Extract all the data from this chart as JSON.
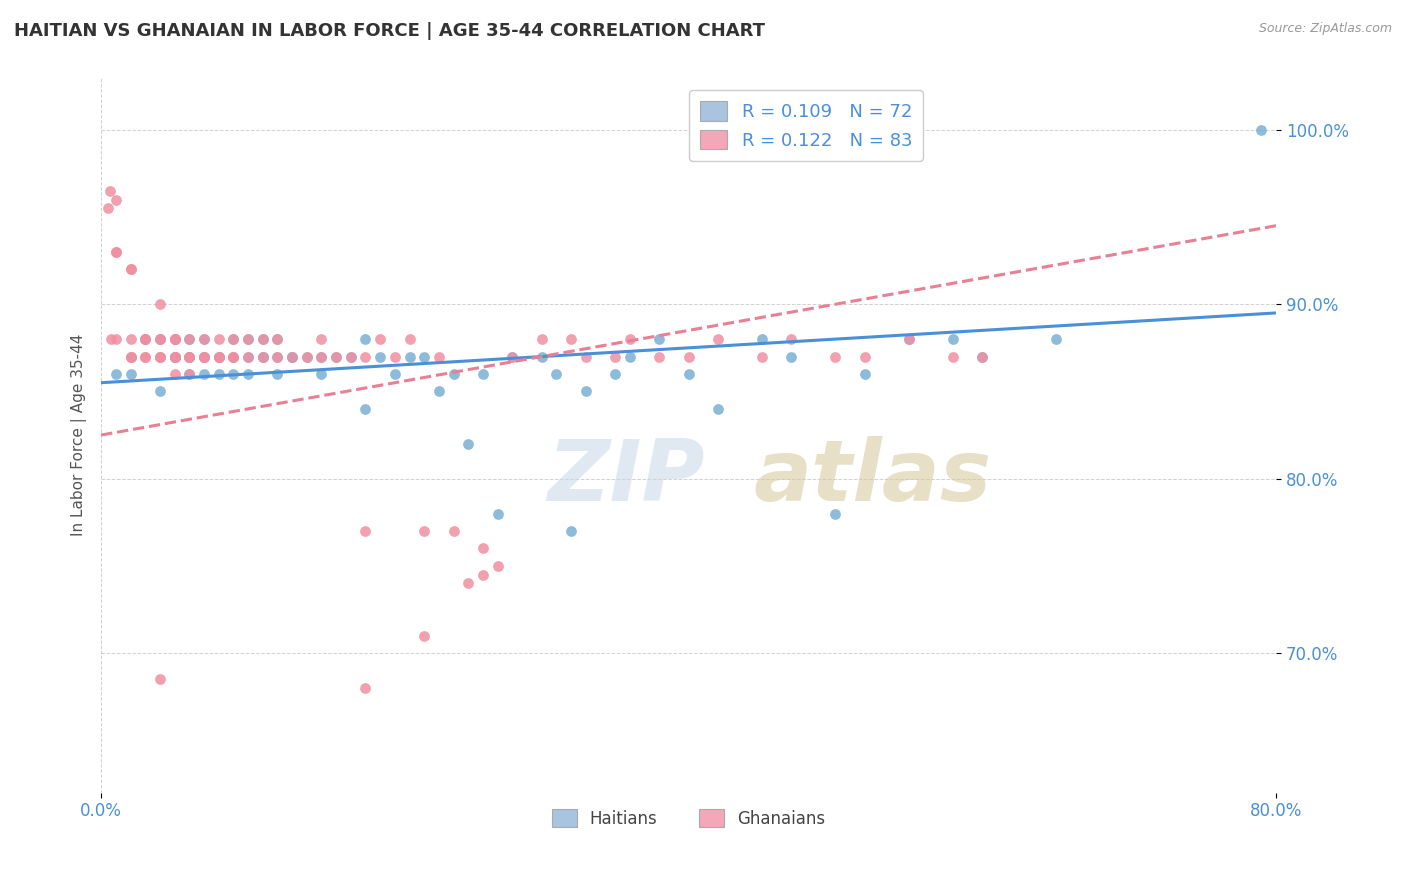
{
  "title": "HAITIAN VS GHANAIAN IN LABOR FORCE | AGE 35-44 CORRELATION CHART",
  "source": "Source: ZipAtlas.com",
  "ylabel": "In Labor Force | Age 35-44",
  "xlim": [
    0.0,
    0.8
  ],
  "ylim": [
    0.62,
    1.03
  ],
  "blue_color": "#7bafd4",
  "pink_color": "#f08fa0",
  "blue_line_color": "#4a90d9",
  "pink_line_color": "#e87f95",
  "blue_legend_color": "#a8c4e0",
  "pink_legend_color": "#f4a7b9",
  "legend_labels_top": [
    "R = 0.109   N = 72",
    "R = 0.122   N = 83"
  ],
  "legend_labels_bottom": [
    "Haitians",
    "Ghanaians"
  ],
  "blue_trend": [
    0.855,
    0.895
  ],
  "pink_trend": [
    0.825,
    0.945
  ],
  "xtick_labels": [
    "0.0%",
    "80.0%"
  ],
  "xtick_vals": [
    0.0,
    0.8
  ],
  "ytick_vals": [
    0.7,
    0.8,
    0.9,
    1.0
  ],
  "ytick_labels": [
    "70.0%",
    "80.0%",
    "90.0%",
    "100.0%"
  ],
  "blue_scatter_x": [
    0.01,
    0.02,
    0.02,
    0.03,
    0.04,
    0.04,
    0.05,
    0.05,
    0.05,
    0.05,
    0.05,
    0.05,
    0.06,
    0.06,
    0.06,
    0.06,
    0.07,
    0.07,
    0.07,
    0.07,
    0.08,
    0.08,
    0.08,
    0.09,
    0.09,
    0.09,
    0.1,
    0.1,
    0.1,
    0.11,
    0.11,
    0.11,
    0.12,
    0.12,
    0.12,
    0.13,
    0.13,
    0.14,
    0.15,
    0.15,
    0.16,
    0.17,
    0.18,
    0.18,
    0.19,
    0.2,
    0.21,
    0.22,
    0.23,
    0.24,
    0.25,
    0.26,
    0.27,
    0.28,
    0.3,
    0.31,
    0.32,
    0.33,
    0.35,
    0.36,
    0.38,
    0.4,
    0.42,
    0.45,
    0.47,
    0.5,
    0.52,
    0.55,
    0.58,
    0.6,
    0.65,
    0.79
  ],
  "blue_scatter_y": [
    0.86,
    0.86,
    0.87,
    0.88,
    0.85,
    0.88,
    0.87,
    0.87,
    0.87,
    0.88,
    0.88,
    0.87,
    0.87,
    0.87,
    0.88,
    0.86,
    0.86,
    0.87,
    0.88,
    0.87,
    0.87,
    0.86,
    0.87,
    0.87,
    0.88,
    0.86,
    0.86,
    0.87,
    0.88,
    0.87,
    0.87,
    0.88,
    0.86,
    0.87,
    0.88,
    0.87,
    0.87,
    0.87,
    0.86,
    0.87,
    0.87,
    0.87,
    0.84,
    0.88,
    0.87,
    0.86,
    0.87,
    0.87,
    0.85,
    0.86,
    0.82,
    0.86,
    0.78,
    0.87,
    0.87,
    0.86,
    0.77,
    0.85,
    0.86,
    0.87,
    0.88,
    0.86,
    0.84,
    0.88,
    0.87,
    0.78,
    0.86,
    0.88,
    0.88,
    0.87,
    0.88,
    1.0
  ],
  "pink_scatter_x": [
    0.005,
    0.006,
    0.007,
    0.01,
    0.01,
    0.01,
    0.01,
    0.02,
    0.02,
    0.02,
    0.02,
    0.02,
    0.03,
    0.03,
    0.03,
    0.03,
    0.04,
    0.04,
    0.04,
    0.04,
    0.04,
    0.04,
    0.05,
    0.05,
    0.05,
    0.05,
    0.05,
    0.06,
    0.06,
    0.06,
    0.06,
    0.07,
    0.07,
    0.07,
    0.08,
    0.08,
    0.08,
    0.09,
    0.09,
    0.09,
    0.1,
    0.1,
    0.11,
    0.11,
    0.12,
    0.12,
    0.13,
    0.14,
    0.15,
    0.15,
    0.16,
    0.17,
    0.18,
    0.18,
    0.19,
    0.2,
    0.21,
    0.22,
    0.23,
    0.24,
    0.25,
    0.26,
    0.27,
    0.28,
    0.3,
    0.32,
    0.33,
    0.35,
    0.36,
    0.38,
    0.4,
    0.42,
    0.45,
    0.47,
    0.5,
    0.52,
    0.55,
    0.58,
    0.6,
    0.18,
    0.22,
    0.26,
    0.04
  ],
  "pink_scatter_y": [
    0.955,
    0.965,
    0.88,
    0.93,
    0.96,
    0.93,
    0.88,
    0.88,
    0.92,
    0.92,
    0.87,
    0.87,
    0.88,
    0.88,
    0.87,
    0.87,
    0.9,
    0.88,
    0.87,
    0.88,
    0.87,
    0.87,
    0.88,
    0.87,
    0.88,
    0.87,
    0.86,
    0.88,
    0.87,
    0.87,
    0.86,
    0.87,
    0.87,
    0.88,
    0.87,
    0.87,
    0.88,
    0.87,
    0.88,
    0.87,
    0.87,
    0.88,
    0.87,
    0.88,
    0.87,
    0.88,
    0.87,
    0.87,
    0.88,
    0.87,
    0.87,
    0.87,
    0.87,
    0.77,
    0.88,
    0.87,
    0.88,
    0.77,
    0.87,
    0.77,
    0.74,
    0.76,
    0.75,
    0.87,
    0.88,
    0.88,
    0.87,
    0.87,
    0.88,
    0.87,
    0.87,
    0.88,
    0.87,
    0.88,
    0.87,
    0.87,
    0.88,
    0.87,
    0.87,
    0.68,
    0.71,
    0.745,
    0.685
  ]
}
